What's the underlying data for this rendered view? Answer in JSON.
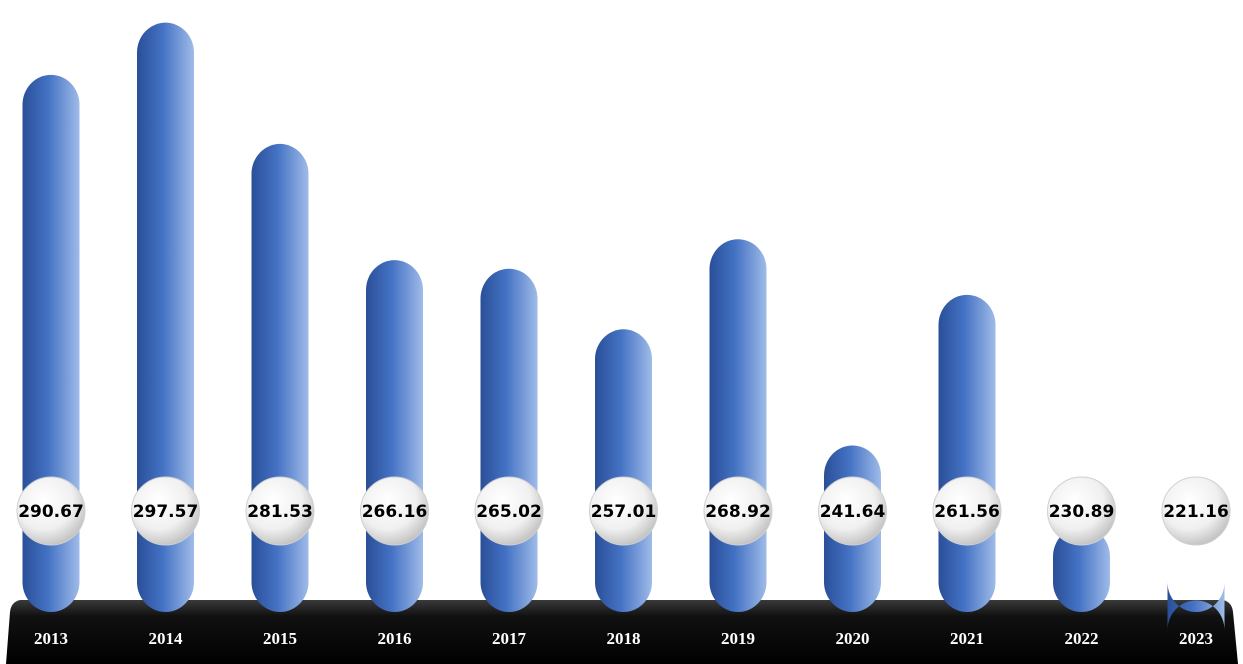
{
  "chart_data": {
    "type": "bar",
    "categories": [
      "2013",
      "2014",
      "2015",
      "2016",
      "2017",
      "2018",
      "2019",
      "2020",
      "2021",
      "2022",
      "2023"
    ],
    "values": [
      290.67,
      297.57,
      281.53,
      266.16,
      265.02,
      257.01,
      268.92,
      241.64,
      261.56,
      230.89,
      221.16
    ],
    "value_labels": [
      "290.67",
      "297.57",
      "281.53",
      "266.16",
      "265.02",
      "257.01",
      "268.92",
      "241.64",
      "261.56",
      "230.89",
      "221.16"
    ],
    "title": "",
    "xlabel": "",
    "ylabel": "",
    "grid": false,
    "legend": "none",
    "colors": {
      "bar_dark": "#2c55a3",
      "bar_mid": "#4472c4",
      "bar_light": "#9bb7e6",
      "base": "#0d0d0d",
      "bubble": "#f4f4f4"
    }
  }
}
